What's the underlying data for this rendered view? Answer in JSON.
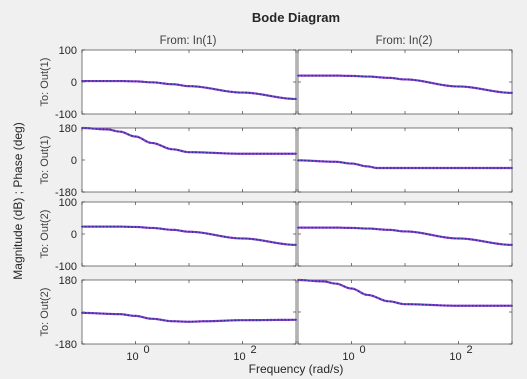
{
  "chart_data": {
    "type": "line",
    "title": "Bode Diagram",
    "xlabel": "Frequency  (rad/s)",
    "ylabel": "Magnitude (dB) ; Phase (deg)",
    "x_scale": "log",
    "xlim": [
      0.1,
      1000
    ],
    "x_ticks": [
      {
        "value": 1,
        "base": "10",
        "exp": "0"
      },
      {
        "value": 100,
        "base": "10",
        "exp": "2"
      }
    ],
    "columns": [
      "From: In(1)",
      "From: In(2)"
    ],
    "rows": [
      {
        "label": "To: Out(1)",
        "quantity": "magnitude",
        "ylim": [
          -100,
          100
        ],
        "yticks": [
          100,
          0,
          -100
        ]
      },
      {
        "label": "To: Out(1)",
        "quantity": "phase",
        "ylim": [
          -180,
          180
        ],
        "yticks": [
          180,
          0,
          -180
        ]
      },
      {
        "label": "To: Out(2)",
        "quantity": "magnitude",
        "ylim": [
          -100,
          100
        ],
        "yticks": [
          100,
          0,
          -100
        ]
      },
      {
        "label": "To: Out(2)",
        "quantity": "phase",
        "ylim": [
          -180,
          180
        ],
        "yticks": [
          180,
          0,
          -180
        ]
      }
    ],
    "style": {
      "line": "#8b3fd0",
      "markers": "#1f3a8a",
      "marker_style": "dots"
    },
    "panels": [
      {
        "row": 0,
        "col": 0,
        "x": [
          0.1,
          0.5,
          1,
          2,
          5,
          10,
          100,
          1000
        ],
        "y": [
          3,
          3,
          2,
          -1,
          -7,
          -13,
          -33,
          -53
        ]
      },
      {
        "row": 0,
        "col": 1,
        "x": [
          0.1,
          0.5,
          1,
          2,
          5,
          10,
          100,
          1000
        ],
        "y": [
          20,
          20,
          19,
          17,
          13,
          8,
          -14,
          -34
        ]
      },
      {
        "row": 1,
        "col": 0,
        "x": [
          0.1,
          0.3,
          0.5,
          1,
          2,
          5,
          10,
          100,
          1000
        ],
        "y": [
          180,
          172,
          160,
          132,
          96,
          60,
          44,
          35,
          35
        ]
      },
      {
        "row": 1,
        "col": 1,
        "x": [
          0.1,
          0.5,
          1,
          2,
          3,
          5,
          10,
          100,
          1000
        ],
        "y": [
          -2,
          -10,
          -20,
          -36,
          -45,
          -45,
          -45,
          -45,
          -45
        ]
      },
      {
        "row": 2,
        "col": 0,
        "x": [
          0.1,
          0.5,
          1,
          2,
          5,
          10,
          100,
          1000
        ],
        "y": [
          23,
          23,
          22,
          19,
          13,
          7,
          -14,
          -34
        ]
      },
      {
        "row": 2,
        "col": 1,
        "x": [
          0.1,
          0.5,
          1,
          2,
          5,
          10,
          100,
          1000
        ],
        "y": [
          20,
          20,
          19,
          17,
          13,
          8,
          -14,
          -34
        ]
      },
      {
        "row": 3,
        "col": 0,
        "x": [
          0.1,
          0.5,
          1,
          2,
          5,
          10,
          20,
          100,
          1000
        ],
        "y": [
          -5,
          -12,
          -22,
          -38,
          -52,
          -55,
          -52,
          -46,
          -44
        ]
      },
      {
        "row": 3,
        "col": 1,
        "x": [
          0.1,
          0.3,
          0.5,
          1,
          2,
          5,
          10,
          100,
          1000
        ],
        "y": [
          180,
          172,
          160,
          132,
          96,
          60,
          44,
          35,
          35
        ]
      }
    ]
  }
}
